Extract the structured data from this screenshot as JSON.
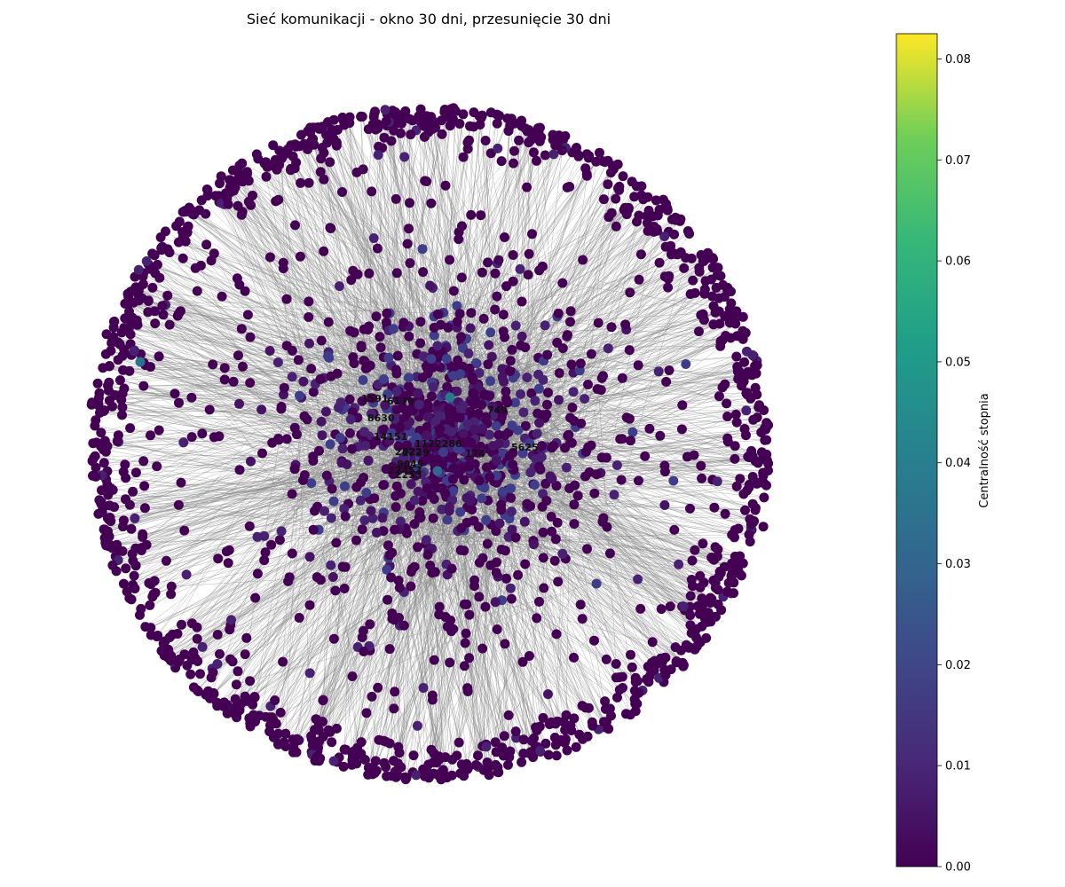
{
  "chart_data": {
    "type": "network",
    "title": "Sieć komunikacji - okno 30 dni, przesunięcie 30 dni",
    "colorbar": {
      "label": "Centralność stopnia",
      "colormap": "viridis",
      "range": [
        0.0,
        0.0825
      ],
      "ticks": [
        0.0,
        0.01,
        0.02,
        0.03,
        0.04,
        0.05,
        0.06,
        0.07,
        0.08
      ],
      "tick_labels": [
        "0.00",
        "0.01",
        "0.02",
        "0.03",
        "0.04",
        "0.05",
        "0.06",
        "0.07",
        "0.08"
      ]
    },
    "node_color_dominant": "#440154",
    "edge_color": "#808080",
    "labeled_nodes": [
      "1591",
      "6176",
      "8630",
      "749",
      "14151",
      "5625",
      "174",
      "1122286",
      "2822",
      "2739",
      "8049",
      "22453",
      "2253"
    ],
    "grid": false,
    "axes": false
  }
}
